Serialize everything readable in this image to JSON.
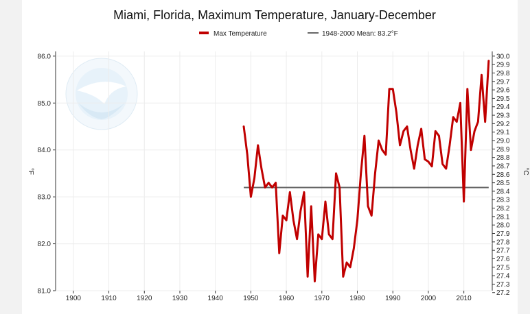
{
  "chart_data": {
    "type": "line",
    "title": "Miami, Florida, Maximum Temperature, January-December",
    "ylabel": "°F",
    "ylabel_right": "°C",
    "xlim": [
      1895,
      2018
    ],
    "ylim": [
      81.0,
      86.1
    ],
    "x_ticks": [
      1900,
      1910,
      1920,
      1930,
      1940,
      1950,
      1960,
      1970,
      1980,
      1990,
      2000,
      2010
    ],
    "y_ticks": [
      81.0,
      82.0,
      83.0,
      84.0,
      85.0,
      86.0
    ],
    "y_tick_labels": [
      "81.0",
      "82.0",
      "83.0",
      "84.0",
      "85.0",
      "86.0"
    ],
    "y2_ticks": [
      27.2,
      27.3,
      27.4,
      27.5,
      27.6,
      27.7,
      27.8,
      27.9,
      28.0,
      28.1,
      28.2,
      28.3,
      28.4,
      28.5,
      28.6,
      28.7,
      28.8,
      28.9,
      29.0,
      29.1,
      29.2,
      29.3,
      29.4,
      29.5,
      29.6,
      29.7,
      29.8,
      29.9,
      30.0
    ],
    "y2_tick_labels": [
      "27.2",
      "27.3",
      "27.4",
      "27.5",
      "27.6",
      "27.7",
      "27.8",
      "27.9",
      "28.0",
      "28.1",
      "28.2",
      "28.3",
      "28.4",
      "28.5",
      "28.6",
      "28.7",
      "28.8",
      "28.9",
      "29.0",
      "29.1",
      "29.2",
      "29.3",
      "29.4",
      "29.5",
      "29.6",
      "29.7",
      "29.8",
      "29.9",
      "30.0"
    ],
    "legend_position": "top-center",
    "series": [
      {
        "name": "Max Temperature",
        "color": "#c00000",
        "x": [
          1948,
          1949,
          1950,
          1951,
          1952,
          1953,
          1954,
          1955,
          1956,
          1957,
          1958,
          1959,
          1960,
          1961,
          1962,
          1963,
          1964,
          1965,
          1966,
          1967,
          1968,
          1969,
          1970,
          1971,
          1972,
          1973,
          1974,
          1975,
          1976,
          1977,
          1978,
          1979,
          1980,
          1981,
          1982,
          1983,
          1984,
          1985,
          1986,
          1987,
          1988,
          1989,
          1990,
          1991,
          1992,
          1993,
          1994,
          1995,
          1996,
          1997,
          1998,
          1999,
          2000,
          2001,
          2002,
          2003,
          2004,
          2005,
          2006,
          2007,
          2008,
          2009,
          2010,
          2011,
          2012,
          2013,
          2014,
          2015,
          2016,
          2017
        ],
        "values": [
          84.5,
          83.9,
          83.0,
          83.4,
          84.1,
          83.6,
          83.2,
          83.3,
          83.2,
          83.3,
          81.8,
          82.6,
          82.5,
          83.1,
          82.5,
          82.1,
          82.7,
          83.1,
          81.3,
          82.8,
          81.2,
          82.2,
          82.1,
          82.9,
          82.2,
          82.1,
          83.5,
          83.2,
          81.3,
          81.6,
          81.5,
          81.9,
          82.5,
          83.5,
          84.3,
          82.8,
          82.6,
          83.5,
          84.2,
          84.0,
          83.9,
          85.3,
          85.3,
          84.8,
          84.1,
          84.4,
          84.5,
          84.0,
          83.6,
          84.1,
          84.45,
          83.8,
          83.75,
          83.65,
          84.4,
          84.3,
          83.7,
          83.6,
          84.1,
          84.7,
          84.6,
          85.0,
          82.9,
          85.3,
          84.0,
          84.4,
          84.6,
          85.6,
          84.6,
          85.9
        ]
      },
      {
        "name": "1948-2000 Mean: 83.2°F",
        "color": "#666666",
        "x": [
          1948,
          2017
        ],
        "values": [
          83.2,
          83.2
        ]
      }
    ]
  }
}
